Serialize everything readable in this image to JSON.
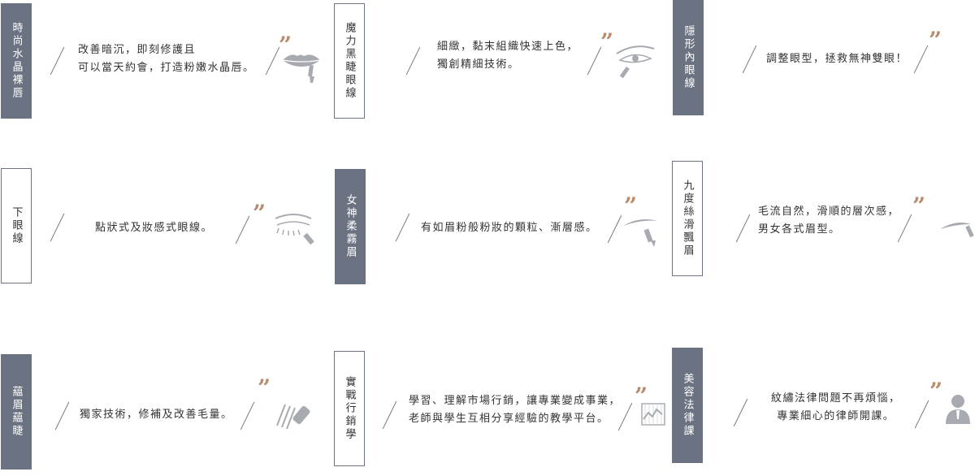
{
  "colors": {
    "tag_bg": "#6b7382",
    "quote": "#b98a6c",
    "text": "#333333",
    "icon": "#a7abb1"
  },
  "quote_glyph": "”",
  "services": [
    {
      "title": "時尚水晶裸唇",
      "style": "dark",
      "lines": [
        "改善暗沉，即刻修護且",
        "可以當天約會，打造粉嫩水晶唇。"
      ],
      "icon": "lips-icon"
    },
    {
      "title": "魔力黑睫眼線",
      "style": "light",
      "lines": [
        "細緻，黏末組織快速上色，",
        "獨創精細技術。"
      ],
      "icon": "eye-liner-icon"
    },
    {
      "title": "隱形內眼線",
      "style": "dark",
      "lines": [
        "調整眼型，拯救無神雙眼！"
      ],
      "icon": "none"
    },
    {
      "title": "下眼線",
      "style": "light",
      "lines": [
        "點狀式及妝感式眼線。"
      ],
      "icon": "lower-lash-icon"
    },
    {
      "title": "女神柔霧眉",
      "style": "dark",
      "lines": [
        "有如眉粉般粉妝的顆粒、漸層感。"
      ],
      "icon": "eyebrow-pencil-icon"
    },
    {
      "title": "九度絲滑飄眉",
      "style": "light",
      "lines": [
        "毛流自然，滑順的層次感，",
        "男女各式眉型。"
      ],
      "icon": "brow-brush-icon"
    },
    {
      "title": "藴眉藴睫",
      "style": "dark",
      "lines": [
        "獨家技術，修補及改善毛量。"
      ],
      "icon": "lash-serum-icon"
    },
    {
      "title": "實戰行銷學",
      "style": "light",
      "lines": [
        "學習、理解市場行銷，讓專業變成事業，",
        "老師與學生互相分享經驗的教學平台。"
      ],
      "icon": "chart-icon"
    },
    {
      "title": "美容法律課",
      "style": "dark",
      "lines": [
        "紋繡法律問題不再煩惱，",
        "專業細心的律師開課。"
      ],
      "icon": "lawyer-icon"
    }
  ]
}
